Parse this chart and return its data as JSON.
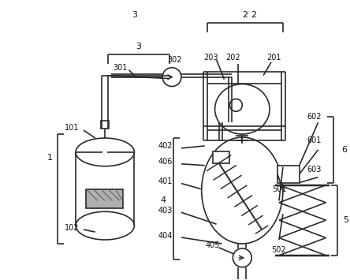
{
  "bg_color": "#ffffff",
  "line_color": "#2a2a2a",
  "label_color": "#111111",
  "fig_width": 4.44,
  "fig_height": 3.55,
  "dpi": 100
}
